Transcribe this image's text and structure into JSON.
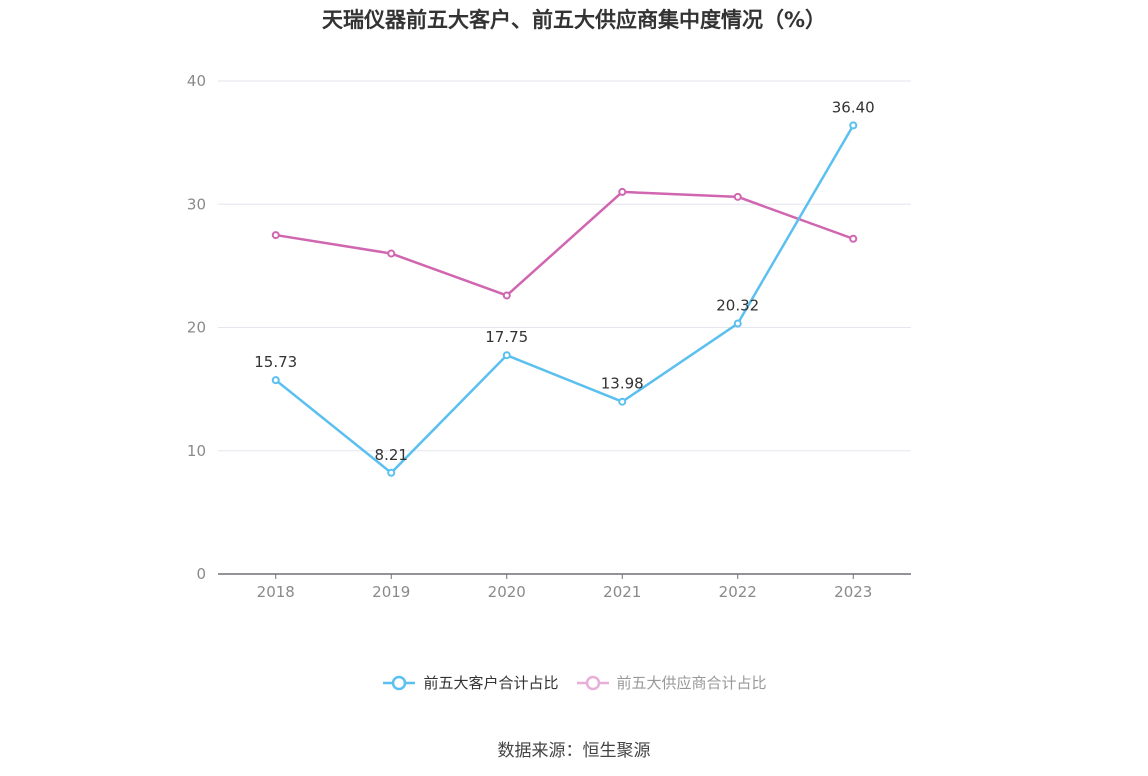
{
  "title": "天瑞仪器前五大客户、前五大供应商集中度情况（%）",
  "source": "数据来源：恒生聚源",
  "colors": {
    "customers": "#5bc0f0",
    "suppliers": "#d066b0",
    "grid": "#e6e6ee",
    "axis": "#6e7079"
  },
  "chart_data": {
    "type": "line",
    "title": "天瑞仪器前五大客户、前五大供应商集中度情况（%）",
    "categories": [
      "2018",
      "2019",
      "2020",
      "2021",
      "2022",
      "2023"
    ],
    "ylim": [
      0,
      40
    ],
    "yticks": [
      0,
      10,
      20,
      30,
      40
    ],
    "grid": true,
    "legend_position": "bottom",
    "series": [
      {
        "name": "前五大客户合计占比",
        "values": [
          15.73,
          8.21,
          17.75,
          13.98,
          20.32,
          36.4
        ],
        "labels": [
          "15.73",
          "8.21",
          "17.75",
          "13.98",
          "20.32",
          "36.40"
        ]
      },
      {
        "name": "前五大供应商合计占比",
        "values": [
          27.5,
          26.0,
          22.6,
          31.0,
          30.6,
          27.2
        ]
      }
    ]
  }
}
